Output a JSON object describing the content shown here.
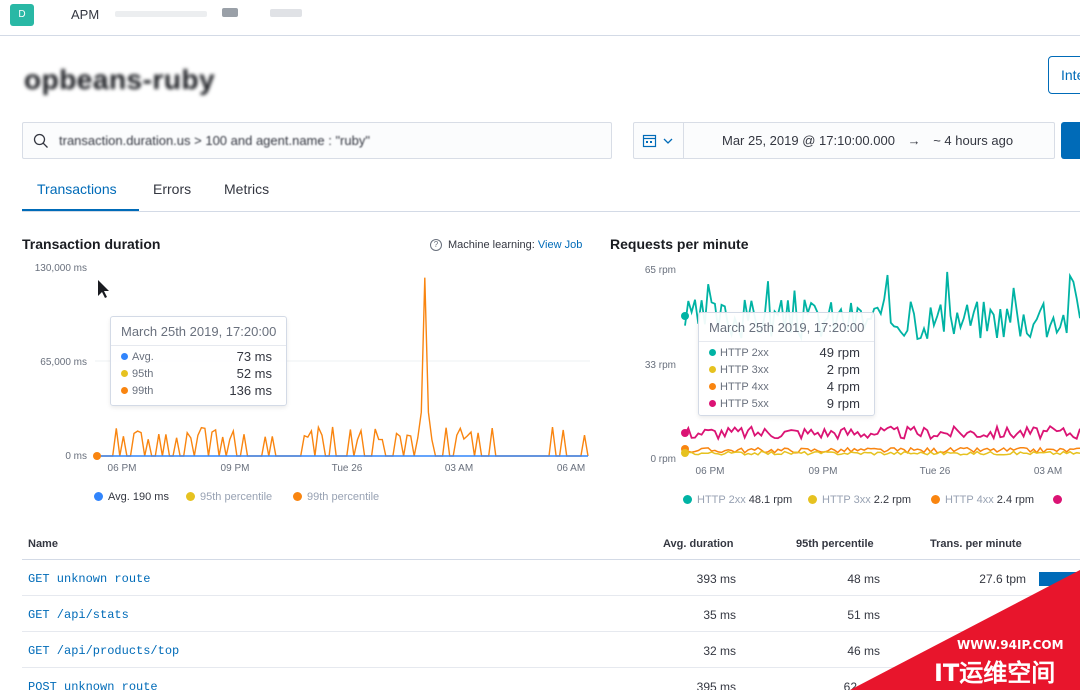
{
  "topbar": {
    "avatar_initial": "D",
    "breadcrumb_app": "APM"
  },
  "page": {
    "title": "opbeans-ruby",
    "integrations_label": "Inte"
  },
  "search": {
    "query": "transaction.duration.us > 100 and agent.name : \"ruby\""
  },
  "datepicker": {
    "start": "Mar 25, 2019 @ 17:10:00.000",
    "arrow": "→",
    "end": "~ 4 hours ago"
  },
  "tabs": [
    {
      "label": "Transactions"
    },
    {
      "label": "Errors"
    },
    {
      "label": "Metrics"
    }
  ],
  "duration_chart": {
    "title": "Transaction duration",
    "ml_label": "Machine learning:",
    "ml_link": "View Job",
    "tooltip": {
      "header": "March 25th 2019, 17:20:00",
      "rows": [
        {
          "label": "Avg.",
          "value": "73 ms",
          "color": "#3185fc"
        },
        {
          "label": "95th",
          "value": "52 ms",
          "color": "#e6c220"
        },
        {
          "label": "99th",
          "value": "136 ms",
          "color": "#f98510"
        }
      ]
    },
    "legend": [
      {
        "label": "Avg.",
        "value": "190 ms",
        "color": "#3185fc"
      },
      {
        "label": "95th percentile",
        "color": "#e6c220"
      },
      {
        "label": "99th percentile",
        "color": "#f98510"
      }
    ]
  },
  "rpm_chart": {
    "title": "Requests per minute",
    "tooltip": {
      "header": "March 25th 2019, 17:20:00",
      "rows": [
        {
          "label": "HTTP 2xx",
          "value": "49 rpm",
          "color": "#00b3a4"
        },
        {
          "label": "HTTP 3xx",
          "value": "2 rpm",
          "color": "#e6c220"
        },
        {
          "label": "HTTP 4xx",
          "value": "4 rpm",
          "color": "#f98510"
        },
        {
          "label": "HTTP 5xx",
          "value": "9 rpm",
          "color": "#db1374"
        }
      ]
    },
    "legend": [
      {
        "label": "HTTP 2xx",
        "value": "48.1 rpm",
        "color": "#00b3a4"
      },
      {
        "label": "HTTP 3xx",
        "value": "2.2 rpm",
        "color": "#e6c220"
      },
      {
        "label": "HTTP 4xx",
        "value": "2.4 rpm",
        "color": "#f98510"
      },
      {
        "label": "HTTP 5xx",
        "value": "",
        "color": "#db1374"
      }
    ]
  },
  "chart_data": [
    {
      "type": "line",
      "y_ticks": [
        "130,000 ms",
        "65,000 ms",
        "0 ms"
      ],
      "ylim": [
        0,
        130000
      ],
      "x_ticks": [
        "06 PM",
        "09 PM",
        "Tue 26",
        "03 AM",
        "06 AM"
      ],
      "series": [
        {
          "name": "99th percentile",
          "color": "#f98510",
          "values": [
            0,
            0,
            0,
            0,
            12000,
            12000,
            0,
            12000,
            0,
            0,
            0,
            0,
            0,
            0,
            12000,
            0,
            12000,
            0,
            0,
            12000,
            12000,
            12000,
            0,
            0,
            0,
            12000,
            0,
            0,
            0,
            12000,
            12000,
            0,
            12000,
            12000,
            0,
            0,
            12000,
            0,
            0,
            0,
            12000,
            0,
            0,
            12000,
            0,
            12000,
            0,
            0,
            0,
            0,
            0,
            12000,
            0,
            0,
            0,
            12000,
            0,
            0,
            12000,
            12000,
            0,
            0,
            0,
            0,
            0,
            0,
            0,
            0,
            12000,
            0,
            0,
            0,
            12000,
            12000,
            0,
            12000,
            0,
            0,
            0,
            12000,
            0,
            12000,
            0,
            0,
            12000,
            0,
            0,
            0,
            12000,
            0,
            0,
            0,
            12000,
            0,
            0,
            0,
            0,
            0,
            12000,
            0,
            0,
            0,
            0,
            0,
            12000,
            0,
            0,
            0,
            12000,
            0,
            0,
            0,
            0,
            0,
            0,
            0,
            0,
            0,
            0,
            0,
            0,
            0,
            0,
            0,
            12000,
            0,
            0,
            0,
            12000,
            12000,
            0,
            0,
            0,
            12000,
            0,
            12000,
            0,
            0,
            0,
            0,
            12000,
            0,
            0,
            0,
            0,
            0,
            0,
            12000,
            0,
            0,
            0,
            0,
            12000,
            0,
            0,
            0,
            0,
            12000,
            0,
            0,
            0,
            0,
            12000,
            0,
            0,
            0,
            12000,
            0,
            0,
            0,
            0,
            0,
            0,
            12000,
            0,
            0,
            0,
            0,
            12000,
            0,
            0,
            0,
            0,
            0,
            0,
            12000,
            0,
            0,
            0,
            0,
            0,
            0,
            0,
            0,
            0,
            12000,
            0,
            0,
            0,
            12000,
            12000,
            0,
            0,
            12000,
            0,
            0,
            12000,
            12000,
            0,
            0,
            0,
            0,
            12000,
            12000,
            0,
            12000,
            0,
            0,
            0,
            0,
            0,
            0,
            0,
            0,
            0,
            0,
            0,
            0,
            0,
            0,
            0,
            0,
            0,
            0,
            0,
            0,
            0,
            0,
            12000,
            0,
            0,
            0,
            0,
            0,
            0,
            0,
            0,
            0,
            0,
            0,
            0,
            12000,
            0,
            0,
            12000,
            0,
            0,
            12000,
            0,
            0,
            0,
            12000,
            12000,
            0,
            0,
            0,
            0,
            0,
            0,
            12000,
            0,
            0,
            0,
            0,
            0,
            0,
            0,
            12000,
            0,
            0,
            0,
            0,
            12000,
            0,
            0,
            0,
            0,
            0,
            0,
            0,
            12000,
            0,
            0,
            0,
            0,
            12000,
            0,
            0,
            0,
            0,
            0,
            0,
            0,
            0,
            0,
            0,
            12000,
            0,
            0,
            0,
            0,
            0,
            0,
            0,
            0,
            0,
            12000,
            0,
            0,
            0,
            0,
            0,
            0,
            0,
            0,
            0,
            0,
            12000,
            0,
            0,
            0,
            12000,
            0,
            0,
            0,
            0,
            0,
            0,
            12000,
            0,
            0,
            0,
            0,
            0,
            0,
            0,
            0,
            0,
            0,
            0,
            0,
            0,
            0,
            12000,
            0,
            0,
            0,
            0,
            0,
            0,
            0,
            0,
            0,
            0,
            0,
            0,
            0,
            12000,
            0,
            0,
            0,
            0,
            0,
            0,
            0,
            0,
            0,
            0,
            0,
            0,
            0,
            0,
            0,
            0,
            0,
            0,
            0,
            0,
            0,
            0,
            0,
            0,
            0,
            0,
            0,
            0,
            0,
            0,
            0,
            0,
            0,
            0,
            0,
            0,
            0,
            0,
            0,
            0,
            0,
            0,
            0,
            12000,
            0,
            0,
            0,
            0,
            0,
            0,
            0,
            0,
            0,
            0,
            0,
            0,
            0,
            0,
            0,
            0,
            0,
            0,
            0,
            0,
            0,
            0,
            0,
            0,
            0,
            0,
            0,
            0,
            0,
            12000,
            0,
            0,
            0,
            0,
            0,
            0,
            0,
            0,
            0,
            0,
            0,
            12000,
            0,
            0,
            0,
            0,
            0,
            12000,
            0,
            0,
            0,
            0,
            0,
            0,
            0,
            0,
            0,
            0,
            0,
            0,
            12000,
            0,
            0,
            0,
            0,
            0,
            0,
            0,
            0,
            0,
            12000,
            0,
            0,
            0,
            0,
            0,
            0,
            0,
            0,
            0,
            0,
            12000,
            0,
            0,
            0,
            0,
            0,
            12000,
            0,
            0,
            0,
            0,
            0,
            0,
            0,
            0,
            0,
            0,
            0,
            0,
            0,
            0,
            0,
            0,
            0,
            0,
            0,
            0,
            0,
            0,
            0,
            0,
            0,
            0,
            0,
            0,
            0,
            12000,
            0,
            0,
            0,
            0,
            0,
            0,
            0,
            0,
            0,
            0,
            0,
            0,
            0,
            0,
            0,
            0,
            0,
            0,
            0,
            12000,
            0,
            0,
            0,
            0,
            0,
            0,
            0,
            12000,
            0,
            0,
            0,
            0,
            0,
            0,
            0,
            0,
            0,
            0,
            0,
            0,
            0,
            0,
            12000,
            0,
            0,
            0,
            0,
            0,
            0,
            0,
            0,
            0,
            0,
            0,
            0,
            0,
            0,
            0,
            0,
            0,
            0,
            0,
            0,
            0,
            0,
            0,
            0,
            0,
            0,
            0,
            0,
            0,
            0,
            0,
            0,
            0,
            0,
            0,
            0,
            0,
            0,
            0,
            0,
            0,
            0,
            0,
            12000,
            0,
            0,
            0,
            0,
            0,
            0,
            0,
            0,
            0,
            0,
            12000
          ]
        },
        {
          "name": "Avg.",
          "color": "#3185fc",
          "values": [
            0,
            0
          ]
        }
      ]
    },
    {
      "type": "line",
      "y_ticks": [
        "65 rpm",
        "33 rpm",
        "0 rpm"
      ],
      "ylim": [
        0,
        65
      ],
      "x_ticks": [
        "06 PM",
        "09 PM",
        "Tue 26",
        "03 AM"
      ],
      "series": [
        {
          "name": "HTTP 2xx",
          "color": "#00b3a4",
          "mean": 48
        },
        {
          "name": "HTTP 5xx",
          "color": "#db1374",
          "mean": 9
        },
        {
          "name": "HTTP 4xx",
          "color": "#f98510",
          "mean": 3
        },
        {
          "name": "HTTP 3xx",
          "color": "#e6c220",
          "mean": 2
        }
      ]
    }
  ],
  "table": {
    "headers": {
      "name": "Name",
      "avg": "Avg. duration",
      "p95": "95th percentile",
      "tpm": "Trans. per minute"
    },
    "rows": [
      {
        "name": "GET unknown route",
        "avg": "393 ms",
        "p95": "48 ms",
        "tpm": "27.6 tpm"
      },
      {
        "name": "GET /api/stats",
        "avg": "35 ms",
        "p95": "51 ms",
        "tpm": "6.9"
      },
      {
        "name": "GET /api/products/top",
        "avg": "32 ms",
        "p95": "46 ms",
        "tpm": ""
      },
      {
        "name": "POST unknown route",
        "avg": "395 ms",
        "p95": "62",
        "tpm": ""
      }
    ]
  },
  "watermark": {
    "url": "WWW.94IP.COM",
    "name": "IT运维空间"
  }
}
